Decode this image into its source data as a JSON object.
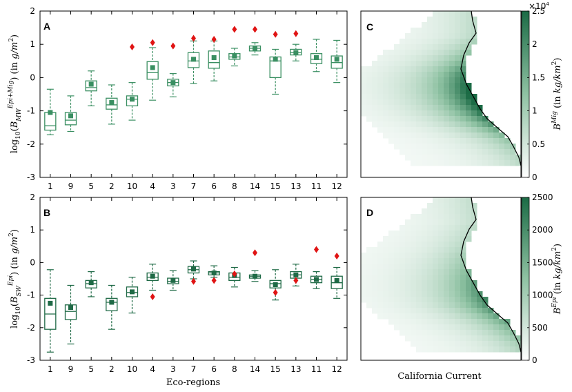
{
  "figure": {
    "colors": {
      "box": "#1f6a46",
      "mean": "#2e8b57",
      "outlier": "#e01414",
      "cmap_dark": "#1b6b45"
    }
  },
  "chart_data": [
    {
      "type": "boxplot",
      "panel": "A",
      "categories": [
        "1",
        "9",
        "5",
        "2",
        "10",
        "4",
        "3",
        "7",
        "6",
        "8",
        "14",
        "15",
        "13",
        "11",
        "12"
      ],
      "ylabel": "log10(B_MW^(Epi+Mig)) (in g/m^2)",
      "ylim": [
        -3,
        2
      ],
      "yticks": [
        -3,
        -2,
        -1,
        0,
        1,
        2
      ],
      "grid": false,
      "box_color": "#3a8f62",
      "boxes": [
        {
          "cat": "1",
          "wlo": -1.72,
          "q1": -1.58,
          "med": -1.45,
          "q3": -1.05,
          "whi": -0.35,
          "mean": -1.05,
          "outliers": []
        },
        {
          "cat": "9",
          "wlo": -1.62,
          "q1": -1.42,
          "med": -1.28,
          "q3": -1.05,
          "whi": -0.55,
          "mean": -1.15,
          "outliers": []
        },
        {
          "cat": "5",
          "wlo": -0.85,
          "q1": -0.4,
          "med": -0.3,
          "q3": -0.1,
          "whi": 0.2,
          "mean": -0.2,
          "outliers": []
        },
        {
          "cat": "2",
          "wlo": -1.4,
          "q1": -0.95,
          "med": -0.82,
          "q3": -0.62,
          "whi": -0.22,
          "mean": -0.75,
          "outliers": []
        },
        {
          "cat": "10",
          "wlo": -1.28,
          "q1": -0.85,
          "med": -0.65,
          "q3": -0.55,
          "whi": -0.15,
          "mean": -0.65,
          "outliers": [
            0.92
          ]
        },
        {
          "cat": "4",
          "wlo": -0.68,
          "q1": -0.05,
          "med": 0.15,
          "q3": 0.48,
          "whi": 0.9,
          "mean": 0.3,
          "outliers": [
            1.05
          ]
        },
        {
          "cat": "3",
          "wlo": -0.58,
          "q1": -0.25,
          "med": -0.15,
          "q3": -0.05,
          "whi": 0.12,
          "mean": -0.15,
          "outliers": [
            0.95
          ]
        },
        {
          "cat": "7",
          "wlo": -0.18,
          "q1": 0.3,
          "med": 0.5,
          "q3": 0.75,
          "whi": 1.1,
          "mean": 0.55,
          "outliers": [
            1.18
          ]
        },
        {
          "cat": "6",
          "wlo": -0.1,
          "q1": 0.28,
          "med": 0.45,
          "q3": 0.8,
          "whi": 1.1,
          "mean": 0.6,
          "outliers": [
            1.15
          ]
        },
        {
          "cat": "8",
          "wlo": 0.35,
          "q1": 0.55,
          "med": 0.62,
          "q3": 0.72,
          "whi": 0.88,
          "mean": 0.65,
          "outliers": [
            1.45
          ]
        },
        {
          "cat": "14",
          "wlo": 0.68,
          "q1": 0.8,
          "med": 0.88,
          "q3": 0.95,
          "whi": 1.05,
          "mean": 0.88,
          "outliers": [
            1.45
          ]
        },
        {
          "cat": "15",
          "wlo": -0.5,
          "q1": 0.0,
          "med": 0.5,
          "q3": 0.62,
          "whi": 0.85,
          "mean": 0.55,
          "outliers": [
            1.3
          ]
        },
        {
          "cat": "13",
          "wlo": 0.5,
          "q1": 0.68,
          "med": 0.75,
          "q3": 0.85,
          "whi": 1.0,
          "mean": 0.75,
          "outliers": [
            1.32
          ]
        },
        {
          "cat": "11",
          "wlo": 0.18,
          "q1": 0.42,
          "med": 0.55,
          "q3": 0.72,
          "whi": 1.15,
          "mean": 0.6,
          "outliers": []
        },
        {
          "cat": "12",
          "wlo": -0.15,
          "q1": 0.28,
          "med": 0.45,
          "q3": 0.65,
          "whi": 1.12,
          "mean": 0.55,
          "outliers": []
        }
      ]
    },
    {
      "type": "boxplot",
      "panel": "B",
      "categories": [
        "1",
        "9",
        "5",
        "2",
        "10",
        "4",
        "3",
        "7",
        "6",
        "8",
        "14",
        "15",
        "13",
        "11",
        "12"
      ],
      "xlabel": "Eco-regions",
      "ylabel": "log10(B_SW^(Epi)) (in g/m^2)",
      "ylim": [
        -3,
        2
      ],
      "yticks": [
        -3,
        -2,
        -1,
        0,
        1,
        2
      ],
      "grid": false,
      "box_color": "#1f6a46",
      "boxes": [
        {
          "cat": "1",
          "wlo": -2.75,
          "q1": -2.05,
          "med": -1.58,
          "q3": -1.1,
          "whi": -0.22,
          "mean": -1.25,
          "outliers": []
        },
        {
          "cat": "9",
          "wlo": -2.5,
          "q1": -1.75,
          "med": -1.5,
          "q3": -1.3,
          "whi": -0.7,
          "mean": -1.38,
          "outliers": []
        },
        {
          "cat": "5",
          "wlo": -1.05,
          "q1": -0.78,
          "med": -0.65,
          "q3": -0.55,
          "whi": -0.28,
          "mean": -0.62,
          "outliers": []
        },
        {
          "cat": "2",
          "wlo": -2.05,
          "q1": -1.48,
          "med": -1.22,
          "q3": -1.1,
          "whi": -0.7,
          "mean": -1.22,
          "outliers": []
        },
        {
          "cat": "10",
          "wlo": -1.55,
          "q1": -1.05,
          "med": -0.92,
          "q3": -0.75,
          "whi": -0.45,
          "mean": -0.9,
          "outliers": []
        },
        {
          "cat": "4",
          "wlo": -0.85,
          "q1": -0.55,
          "med": -0.45,
          "q3": -0.32,
          "whi": -0.05,
          "mean": -0.42,
          "outliers": [
            -1.05
          ]
        },
        {
          "cat": "3",
          "wlo": -0.85,
          "q1": -0.65,
          "med": -0.58,
          "q3": -0.48,
          "whi": -0.25,
          "mean": -0.55,
          "outliers": []
        },
        {
          "cat": "7",
          "wlo": -0.5,
          "q1": -0.32,
          "med": -0.22,
          "q3": -0.12,
          "whi": 0.05,
          "mean": -0.2,
          "outliers": [
            -0.58
          ]
        },
        {
          "cat": "6",
          "wlo": -0.45,
          "q1": -0.38,
          "med": -0.32,
          "q3": -0.28,
          "whi": -0.1,
          "mean": -0.32,
          "outliers": [
            -0.55
          ]
        },
        {
          "cat": "8",
          "wlo": -0.75,
          "q1": -0.55,
          "med": -0.45,
          "q3": -0.32,
          "whi": -0.15,
          "mean": -0.4,
          "outliers": [
            -0.35
          ]
        },
        {
          "cat": "14",
          "wlo": -0.58,
          "q1": -0.48,
          "med": -0.42,
          "q3": -0.38,
          "whi": -0.25,
          "mean": -0.42,
          "outliers": [
            0.3
          ]
        },
        {
          "cat": "15",
          "wlo": -1.15,
          "q1": -0.78,
          "med": -0.65,
          "q3": -0.55,
          "whi": -0.22,
          "mean": -0.68,
          "outliers": [
            -0.92
          ]
        },
        {
          "cat": "13",
          "wlo": -0.72,
          "q1": -0.48,
          "med": -0.38,
          "q3": -0.28,
          "whi": -0.05,
          "mean": -0.38,
          "outliers": [
            -0.55
          ]
        },
        {
          "cat": "11",
          "wlo": -0.8,
          "q1": -0.62,
          "med": -0.52,
          "q3": -0.42,
          "whi": -0.28,
          "mean": -0.52,
          "outliers": [
            0.4
          ]
        },
        {
          "cat": "12",
          "wlo": -1.1,
          "q1": -0.8,
          "med": -0.62,
          "q3": -0.42,
          "whi": -0.15,
          "mean": -0.55,
          "outliers": [
            0.2
          ]
        }
      ]
    },
    {
      "type": "heatmap",
      "panel": "C",
      "colorbar_label": "B^Mig (in kg/km^2)",
      "colorbar_ticks": [
        "0",
        "0.5",
        "1",
        "1.5",
        "2",
        "2.5"
      ],
      "colorbar_range": [
        0,
        25000
      ],
      "colorbar_exponent": "×10",
      "colorbar_exponent_power": "4"
    },
    {
      "type": "heatmap",
      "panel": "D",
      "xlabel": "California Current",
      "colorbar_label": "B^Epi (in kg/km^2)",
      "colorbar_ticks": [
        "0",
        "500",
        "1000",
        "1500",
        "2000",
        "2500"
      ],
      "colorbar_range": [
        0,
        2500
      ]
    }
  ]
}
